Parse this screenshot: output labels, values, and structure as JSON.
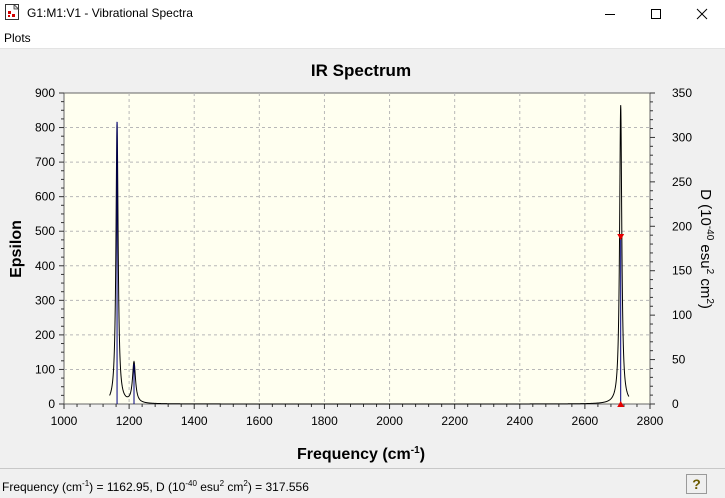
{
  "window": {
    "title": "G1:M1:V1 - Vibrational Spectra",
    "controls": [
      "minimize-icon",
      "maximize-icon",
      "close-icon"
    ]
  },
  "menu": {
    "items": [
      "Plots"
    ]
  },
  "status": {
    "prefix": "Frequency (cm",
    "freq_exp": "-1",
    "mid": ") = 1162.95, D (10",
    "d_exp": "-40",
    "mid2": " esu",
    "esu_exp": "2",
    "mid3": " cm",
    "cm_exp": "2",
    "suffix": ") = 317.556",
    "help_icon": "question-mark-icon"
  },
  "colors": {
    "plot_background": "#fffff0",
    "spectrum_line": "#000000",
    "marker": "#e60000"
  },
  "chart_data": {
    "type": "line",
    "title": "IR Spectrum",
    "xlabel": "Frequency (cm",
    "xlabel_exp": "-1",
    "xlabel_suffix": ")",
    "ylabel": "Epsilon",
    "y2label": "D (10",
    "y2label_exp": "-40",
    "y2label_mid": " esu",
    "y2label_exp2": "2",
    "y2label_mid2": " cm",
    "y2label_exp3": "2",
    "y2label_suffix": ")",
    "xlim": [
      1000,
      2800
    ],
    "ylim": [
      0,
      900
    ],
    "y2lim": [
      0,
      350
    ],
    "x_ticks": [
      1000,
      1200,
      1400,
      1600,
      1800,
      2000,
      2200,
      2400,
      2600,
      2800
    ],
    "y_ticks": [
      0,
      100,
      200,
      300,
      400,
      500,
      600,
      700,
      800,
      900
    ],
    "y2_ticks": [
      0,
      50,
      100,
      150,
      200,
      250,
      300,
      350
    ],
    "grid": true,
    "series": [
      {
        "peaks": [
          {
            "x": 1162.95,
            "epsilon": 815,
            "width": 8
          },
          {
            "x": 1215,
            "epsilon": 118,
            "width": 11
          },
          {
            "x": 2710,
            "epsilon": 865,
            "width": 8
          }
        ]
      }
    ],
    "sticks": [
      {
        "x": 1162.95,
        "d": 317.556
      },
      {
        "x": 1215,
        "d": 45
      },
      {
        "x": 2710,
        "d": 188
      }
    ],
    "markers": [
      {
        "x": 2710,
        "d": 188
      },
      {
        "x": 2710,
        "d": 0
      }
    ]
  }
}
